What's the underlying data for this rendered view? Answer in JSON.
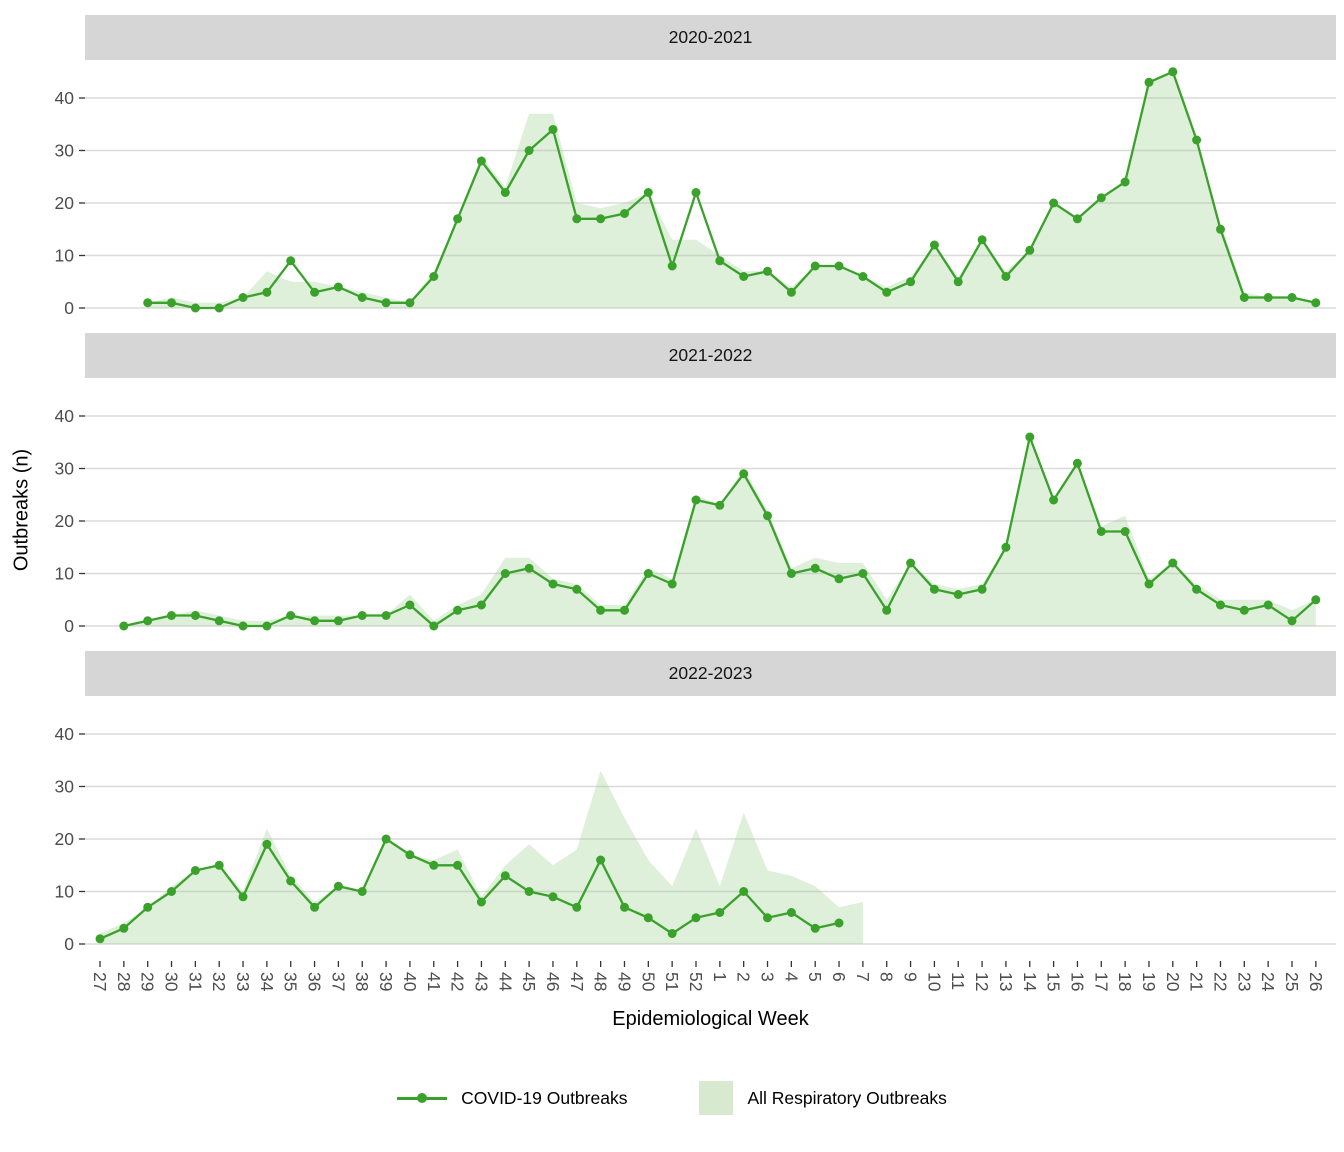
{
  "chart_data": {
    "type": "area",
    "subtype": "faceted line + area, 3 season facets",
    "xlabel": "Epidemiological Week",
    "ylabel": "Outbreaks (n)",
    "yticks": [
      0,
      10,
      20,
      30,
      40
    ],
    "ylim": [
      0,
      47
    ],
    "grid": "horizontal-major-only",
    "legend_position": "bottom",
    "weeks": [
      "27",
      "28",
      "29",
      "30",
      "31",
      "32",
      "33",
      "34",
      "35",
      "36",
      "37",
      "38",
      "39",
      "40",
      "41",
      "42",
      "43",
      "44",
      "45",
      "46",
      "47",
      "48",
      "49",
      "50",
      "51",
      "52",
      "1",
      "2",
      "3",
      "4",
      "5",
      "6",
      "7",
      "8",
      "9",
      "10",
      "11",
      "12",
      "13",
      "14",
      "15",
      "16",
      "17",
      "18",
      "19",
      "20",
      "21",
      "22",
      "23",
      "24",
      "25",
      "26"
    ],
    "series_legend": [
      {
        "name": "COVID-19 Outbreaks",
        "type": "line+points"
      },
      {
        "name": "All Respiratory Outbreaks",
        "type": "area"
      }
    ],
    "panels": [
      {
        "title": "2020-2021",
        "covid": [
          null,
          null,
          1,
          1,
          0,
          0,
          2,
          3,
          9,
          3,
          4,
          2,
          1,
          1,
          6,
          17,
          28,
          22,
          30,
          34,
          17,
          17,
          18,
          22,
          8,
          22,
          9,
          6,
          7,
          3,
          8,
          8,
          6,
          3,
          5,
          12,
          5,
          13,
          6,
          11,
          20,
          17,
          21,
          24,
          43,
          45,
          32,
          15,
          2,
          2,
          2,
          1
        ],
        "all_resp": [
          null,
          null,
          1,
          2,
          1,
          1,
          2,
          7,
          5,
          5,
          4,
          3,
          2,
          1,
          7,
          17,
          29,
          23,
          37,
          37,
          20,
          19,
          20,
          22,
          13,
          13,
          10,
          7,
          7,
          4,
          8,
          8,
          6,
          4,
          6,
          12,
          6,
          13,
          7,
          11,
          20,
          17,
          21,
          24,
          43,
          45,
          32,
          16,
          3,
          2,
          2,
          1
        ]
      },
      {
        "title": "2021-2022",
        "covid": [
          null,
          0,
          1,
          2,
          2,
          1,
          0,
          0,
          2,
          1,
          1,
          2,
          2,
          4,
          0,
          3,
          4,
          10,
          11,
          8,
          7,
          3,
          3,
          10,
          8,
          24,
          23,
          29,
          21,
          10,
          11,
          9,
          10,
          3,
          12,
          7,
          6,
          7,
          15,
          36,
          24,
          31,
          18,
          18,
          8,
          12,
          7,
          4,
          3,
          4,
          1,
          5
        ],
        "all_resp": [
          null,
          0,
          1,
          2,
          3,
          2,
          1,
          1,
          2,
          2,
          2,
          2,
          2,
          6,
          1,
          4,
          6,
          13,
          13,
          9,
          8,
          4,
          4,
          11,
          9,
          25,
          23,
          30,
          22,
          11,
          13,
          12,
          12,
          5,
          12,
          8,
          7,
          8,
          15,
          36,
          24,
          31,
          19,
          21,
          9,
          12,
          8,
          5,
          5,
          5,
          3,
          5
        ]
      },
      {
        "title": "2022-2023",
        "covid": [
          1,
          3,
          7,
          10,
          14,
          15,
          9,
          19,
          12,
          7,
          11,
          10,
          20,
          17,
          15,
          15,
          8,
          13,
          10,
          9,
          7,
          16,
          7,
          5,
          2,
          5,
          6,
          10,
          5,
          6,
          3,
          4,
          null,
          null,
          null,
          null,
          null,
          null,
          null,
          null,
          null,
          null,
          null,
          null,
          null,
          null,
          null,
          null,
          null,
          null,
          null,
          null
        ],
        "all_resp": [
          2,
          4,
          7,
          11,
          14,
          15,
          10,
          22,
          13,
          8,
          11,
          10,
          20,
          17,
          16,
          18,
          9,
          15,
          19,
          15,
          18,
          33,
          24,
          16,
          11,
          22,
          11,
          25,
          14,
          13,
          11,
          7,
          8,
          null,
          null,
          null,
          null,
          null,
          null,
          null,
          null,
          null,
          null,
          null,
          null,
          null,
          null,
          null,
          null,
          null,
          null,
          null
        ]
      }
    ],
    "colors": {
      "line": "#3aa12b",
      "area_fill": "#a0d295",
      "area_opacity": 0.35,
      "legend_area_swatch": "#d7e9cf",
      "strip_background": "#d6d6d6",
      "gridline": "#dadada",
      "axis_text": "#4d4d4d",
      "tick_mark": "#333333"
    }
  }
}
